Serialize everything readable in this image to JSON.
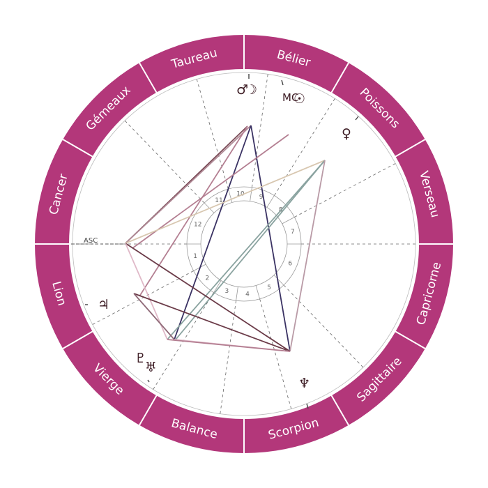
{
  "chart": {
    "asc_label": "ASC",
    "colors": {
      "ring": "#b3377a",
      "divider": "#ffffff",
      "label": "#ffffff",
      "house_line": "#666666",
      "planet_glyph": "#3b1a22"
    },
    "zodiac_signs": [
      {
        "name": "Bélier",
        "icon": "aries-sign"
      },
      {
        "name": "Taureau",
        "icon": "taurus-sign"
      },
      {
        "name": "Gémeaux",
        "icon": "gemini-sign"
      },
      {
        "name": "Cancer",
        "icon": "cancer-sign"
      },
      {
        "name": "Lion",
        "icon": "leo-sign"
      },
      {
        "name": "Vierge",
        "icon": "virgo-sign"
      },
      {
        "name": "Balance",
        "icon": "libra-sign"
      },
      {
        "name": "Scorpion",
        "icon": "scorpio-sign"
      },
      {
        "name": "Sagittaire",
        "icon": "sagittarius-sign"
      },
      {
        "name": "Capricorne",
        "icon": "capricorn-sign"
      },
      {
        "name": "Verseau",
        "icon": "aquarius-sign"
      },
      {
        "name": "Poissons",
        "icon": "pisces-sign"
      }
    ],
    "house_numbers": [
      "1",
      "2",
      "3",
      "4",
      "5",
      "6",
      "7",
      "8",
      "9",
      "10",
      "11",
      "12"
    ],
    "planets": [
      {
        "glyph": "☽",
        "icon": "moon-icon"
      },
      {
        "glyph": "♂",
        "icon": "mars-icon"
      },
      {
        "glyph": "♄",
        "icon": "saturn-icon"
      },
      {
        "glyph": "☿",
        "icon": "mercury-icon"
      },
      {
        "glyph": "☉",
        "icon": "sun-icon"
      },
      {
        "glyph": "♀",
        "icon": "venus-icon"
      },
      {
        "glyph": "♃",
        "icon": "jupiter-icon"
      },
      {
        "glyph": "♇",
        "icon": "pluto-icon"
      },
      {
        "glyph": "♅",
        "icon": "uranus-icon"
      },
      {
        "glyph": "♆",
        "icon": "neptune-icon"
      }
    ],
    "mc_label": "MC"
  }
}
